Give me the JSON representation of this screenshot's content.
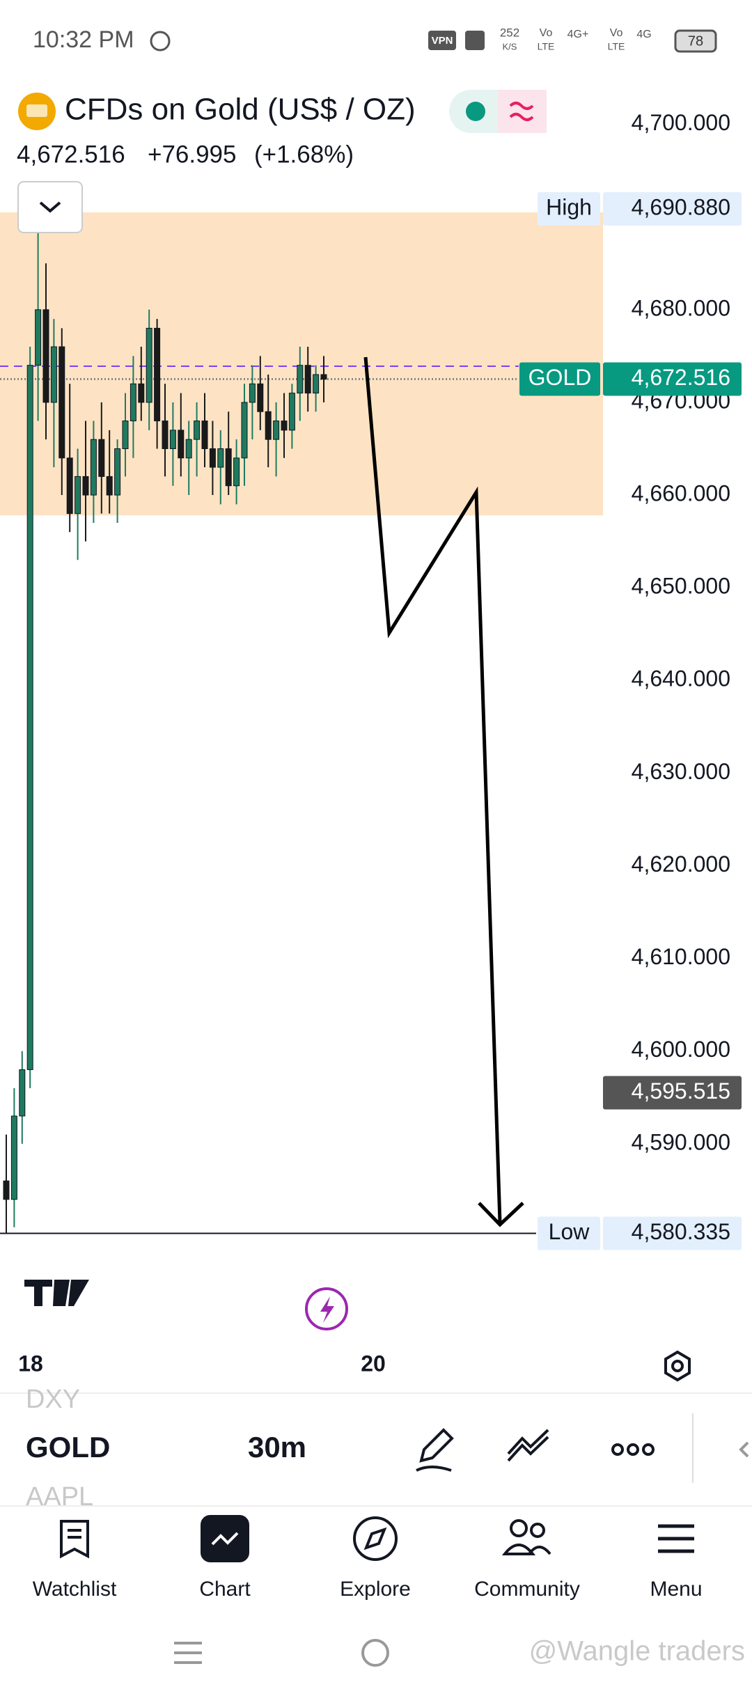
{
  "status_bar": {
    "time": "10:32 PM",
    "vpn": "VPN",
    "speed": "252",
    "speed_unit": "K/S",
    "net1": "Vo",
    "net1b": "LTE",
    "net2": "4G+",
    "net3": "4G",
    "battery": "78"
  },
  "header": {
    "title": "CFDs on Gold (US$ / OZ)",
    "price": "4,672.516",
    "change": "+76.995",
    "change_pct": "(+1.68%)"
  },
  "chart_data": {
    "type": "candlestick",
    "ylim": [
      4579.7,
      4704.4
    ],
    "yticks": [
      {
        "value": 4700,
        "label": "4,700.000"
      },
      {
        "value": 4680,
        "label": "4,680.000"
      },
      {
        "value": 4670,
        "label": "4,670.000"
      },
      {
        "value": 4660,
        "label": "4,660.000"
      },
      {
        "value": 4650,
        "label": "4,650.000"
      },
      {
        "value": 4640,
        "label": "4,640.000"
      },
      {
        "value": 4630,
        "label": "4,630.000"
      },
      {
        "value": 4620,
        "label": "4,620.000"
      },
      {
        "value": 4610,
        "label": "4,610.000"
      },
      {
        "value": 4600,
        "label": "4,600.000"
      },
      {
        "value": 4590,
        "label": "4,590.000"
      }
    ],
    "x_labels": [
      "18",
      "20"
    ],
    "up_color": "#1f7a60",
    "down_color": "#1a1a1a",
    "zone": {
      "top": 4690.5,
      "bottom": 4657.8
    },
    "alert_line": 4673.9,
    "price_line": 4672.516,
    "price_tags": [
      {
        "name": "High",
        "value": 4690.88,
        "label": "4,690.880",
        "style": "light"
      },
      {
        "name": "GOLD",
        "value": 4672.516,
        "label": "4,672.516",
        "style": "green"
      },
      {
        "value": 4595.515,
        "label": "4,595.515",
        "style": "dark"
      },
      {
        "name": "Low",
        "value": 4580.335,
        "label": "4,580.335",
        "style": "light",
        "line": true
      }
    ],
    "candles": [
      [
        4586,
        4591,
        4580.3,
        4584
      ],
      [
        4584,
        4596,
        4581,
        4593
      ],
      [
        4593,
        4600,
        4590,
        4598
      ],
      [
        4598,
        4676,
        4596,
        4674
      ],
      [
        4674,
        4690.9,
        4668,
        4680
      ],
      [
        4680,
        4685,
        4666,
        4670
      ],
      [
        4670,
        4679,
        4663,
        4676
      ],
      [
        4676,
        4678,
        4660,
        4664
      ],
      [
        4664,
        4672,
        4656,
        4658
      ],
      [
        4658,
        4665,
        4653,
        4662
      ],
      [
        4662,
        4668,
        4655,
        4660
      ],
      [
        4660,
        4668,
        4657,
        4666
      ],
      [
        4666,
        4670,
        4658,
        4662
      ],
      [
        4662,
        4667,
        4658,
        4660
      ],
      [
        4660,
        4666,
        4657,
        4665
      ],
      [
        4665,
        4671,
        4662,
        4668
      ],
      [
        4668,
        4675,
        4664,
        4672
      ],
      [
        4672,
        4676,
        4668,
        4670
      ],
      [
        4670,
        4680,
        4667,
        4678
      ],
      [
        4678,
        4679,
        4665,
        4668
      ],
      [
        4668,
        4672,
        4662,
        4665
      ],
      [
        4665,
        4670,
        4661,
        4667
      ],
      [
        4667,
        4671,
        4662,
        4664
      ],
      [
        4664,
        4668,
        4660,
        4666
      ],
      [
        4666,
        4670,
        4662,
        4668
      ],
      [
        4668,
        4671,
        4663,
        4665
      ],
      [
        4665,
        4668,
        4660,
        4663
      ],
      [
        4663,
        4667,
        4659,
        4665
      ],
      [
        4665,
        4669,
        4660,
        4661
      ],
      [
        4661,
        4666,
        4659,
        4664
      ],
      [
        4664,
        4672,
        4661,
        4670
      ],
      [
        4670,
        4674,
        4666,
        4672
      ],
      [
        4672,
        4675,
        4667,
        4669
      ],
      [
        4669,
        4673,
        4663,
        4666
      ],
      [
        4666,
        4670,
        4662,
        4668
      ],
      [
        4668,
        4671,
        4664,
        4667
      ],
      [
        4667,
        4672,
        4665,
        4671
      ],
      [
        4671,
        4676,
        4668,
        4674
      ],
      [
        4674,
        4676,
        4669,
        4671
      ],
      [
        4671,
        4674,
        4669,
        4673
      ],
      [
        4673,
        4675,
        4670,
        4672.5
      ]
    ]
  },
  "toolbar": {
    "symbols": [
      "DXY",
      "GOLD",
      "AAPL"
    ],
    "interval": "30m"
  },
  "nav": [
    "Watchlist",
    "Chart",
    "Explore",
    "Community",
    "Menu"
  ],
  "watermark": "@Wangle traders"
}
